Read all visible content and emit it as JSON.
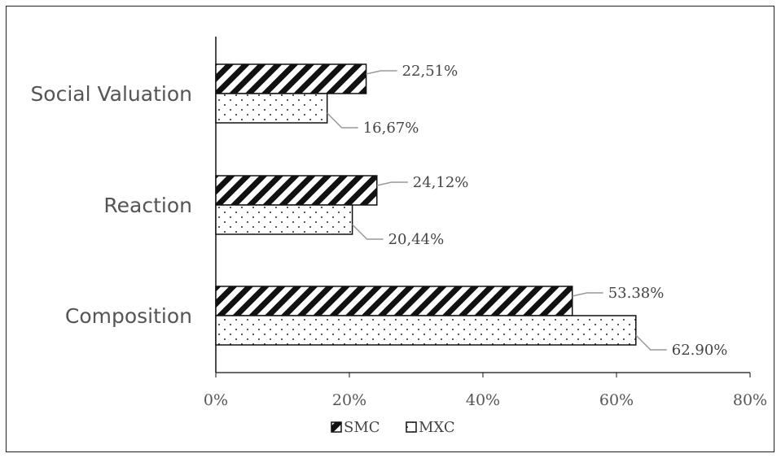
{
  "chart_data": {
    "type": "bar",
    "orientation": "horizontal",
    "categories": [
      "Social Valuation",
      "Reaction",
      "Composition"
    ],
    "series": [
      {
        "name": "SMC",
        "values": [
          22.51,
          24.12,
          53.38
        ],
        "labels": [
          "22,51%",
          "24,12%",
          "53.38%"
        ],
        "pattern": "diagonal-hatch"
      },
      {
        "name": "MXC",
        "values": [
          16.67,
          20.44,
          62.9
        ],
        "labels": [
          "16,67%",
          "20,44%",
          "62.90%"
        ],
        "pattern": "dots"
      }
    ],
    "xlim": [
      0,
      80
    ],
    "xticks": [
      0,
      20,
      40,
      60,
      80
    ],
    "xtick_labels": [
      "0%",
      "20%",
      "40%",
      "60%",
      "80%"
    ],
    "legend_position": "bottom",
    "grid": false,
    "colors": {
      "bar_stroke": "#111111",
      "leader_line": "#999999",
      "text": "#555555"
    }
  }
}
